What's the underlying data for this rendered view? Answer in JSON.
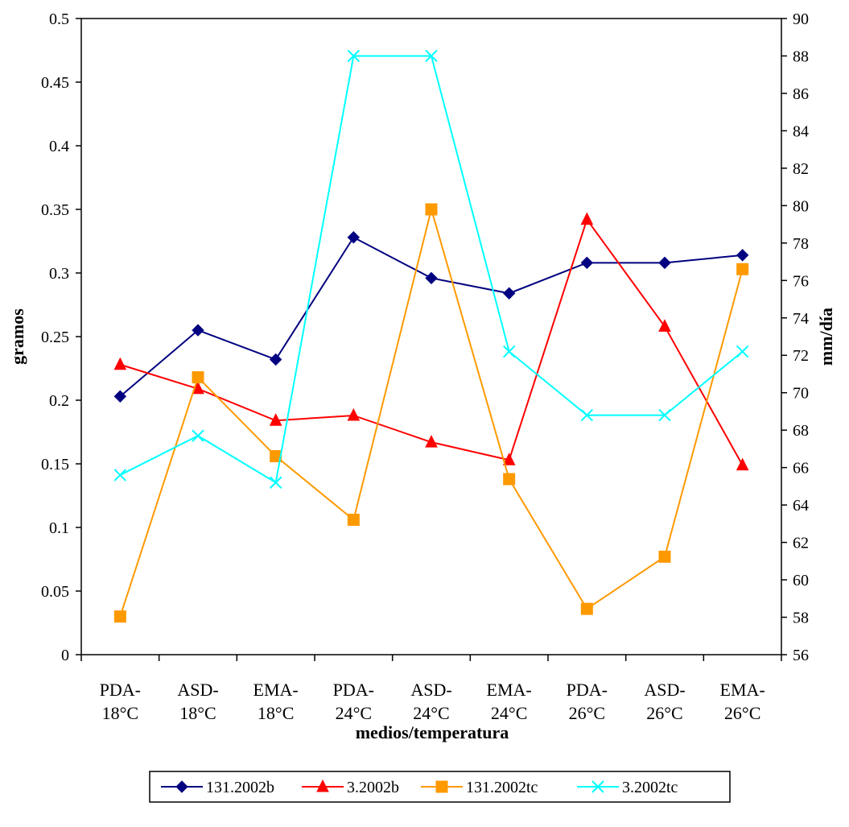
{
  "chart_data": {
    "type": "line",
    "categories": [
      [
        "PDA-",
        "18°C"
      ],
      [
        "ASD-",
        "18°C"
      ],
      [
        "EMA-",
        "18°C"
      ],
      [
        "PDA-",
        "24°C"
      ],
      [
        "ASD-",
        "24°C"
      ],
      [
        "EMA-",
        "24°C"
      ],
      [
        "PDA-",
        "26°C"
      ],
      [
        "ASD-",
        "26°C"
      ],
      [
        "EMA-",
        "26°C"
      ]
    ],
    "xlabel": "medios/temperatura",
    "ylabel": "gramos",
    "y2label": "mm/día",
    "ylim": [
      0,
      0.5
    ],
    "y2lim": [
      56,
      90
    ],
    "yticks": [
      "0",
      "0.05",
      "0.1",
      "0.15",
      "0.2",
      "0.25",
      "0.3",
      "0.35",
      "0.4",
      "0.45",
      "0.5"
    ],
    "y2ticks": [
      "56",
      "58",
      "60",
      "62",
      "64",
      "66",
      "68",
      "70",
      "72",
      "74",
      "76",
      "78",
      "80",
      "82",
      "84",
      "86",
      "88",
      "90"
    ],
    "grid": false,
    "legend_position": "bottom",
    "series": [
      {
        "name": "131.2002b",
        "axis": "left",
        "color": "#000080",
        "marker": "diamond",
        "values": [
          0.203,
          0.255,
          0.232,
          0.328,
          0.296,
          0.284,
          0.308,
          0.308,
          0.314
        ]
      },
      {
        "name": "3.2002b",
        "axis": "left",
        "color": "#ff0000",
        "marker": "triangle",
        "values": [
          0.228,
          0.209,
          0.184,
          0.188,
          0.167,
          0.153,
          0.342,
          0.258,
          0.149
        ]
      },
      {
        "name": "131.2002tc",
        "axis": "left",
        "color": "#ff9900",
        "marker": "square",
        "values": [
          0.03,
          0.218,
          0.156,
          0.106,
          0.35,
          0.138,
          0.036,
          0.077,
          0.303
        ]
      },
      {
        "name": "3.2002tc",
        "axis": "right",
        "color": "#00ffff",
        "marker": "x",
        "values": [
          65.6,
          67.7,
          65.2,
          88.0,
          88.0,
          72.2,
          68.8,
          68.8,
          72.2
        ]
      }
    ]
  }
}
